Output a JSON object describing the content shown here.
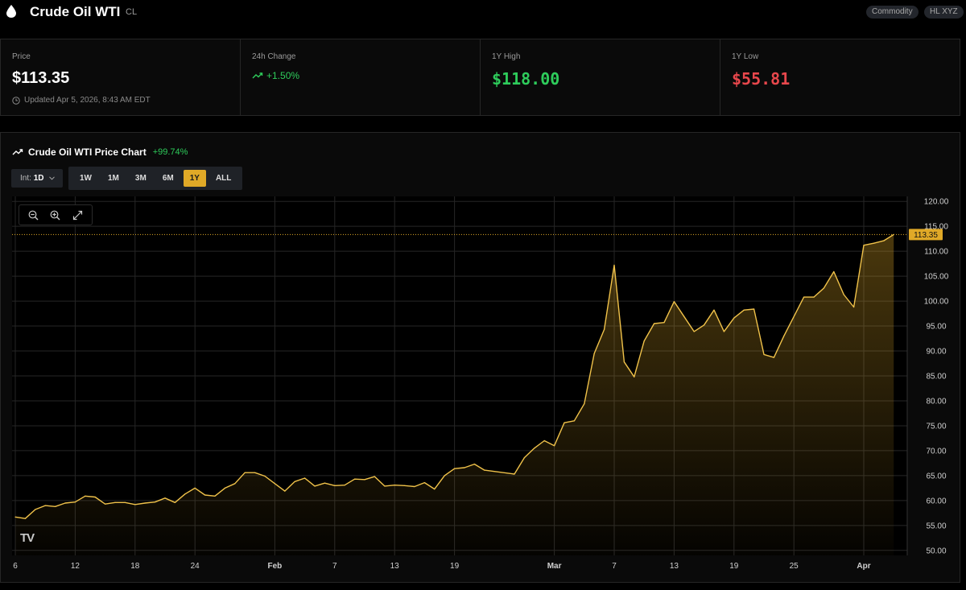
{
  "header": {
    "title": "Crude Oil WTI",
    "ticker": "CL",
    "icon": "droplet-icon",
    "badges": [
      "Commodity",
      "HL XYZ"
    ]
  },
  "stats": {
    "price": {
      "label": "Price",
      "value": "$113.35",
      "updated": "Updated Apr 5, 2026, 8:43 AM EDT"
    },
    "change": {
      "label": "24h Change",
      "value": "+1.50%"
    },
    "high": {
      "label": "1Y High",
      "value": "$118.00"
    },
    "low": {
      "label": "1Y Low",
      "value": "$55.81"
    }
  },
  "chart_panel": {
    "title": "Crude Oil WTI Price Chart",
    "change": "+99.74%",
    "interval_label": "Int:",
    "interval_value": "1D",
    "ranges": [
      "1W",
      "1M",
      "3M",
      "6M",
      "1Y",
      "ALL"
    ],
    "active_range": "1Y",
    "logo": "TV"
  },
  "colors": {
    "accent": "#e0a927",
    "line": "#f0c24a",
    "up": "#2ecc5b",
    "down": "#e8474c"
  },
  "chart_data": {
    "type": "area",
    "last_value": 113.35,
    "last_value_label": "113.35",
    "ylim": [
      49,
      121
    ],
    "y_ticks": [
      50,
      55,
      60,
      65,
      70,
      75,
      80,
      85,
      90,
      95,
      100,
      105,
      110,
      115,
      120
    ],
    "y_tick_labels": [
      "50.00",
      "55.00",
      "60.00",
      "65.00",
      "70.00",
      "75.00",
      "80.00",
      "85.00",
      "90.00",
      "95.00",
      "100.00",
      "105.00",
      "110.00",
      "115.00",
      "120.00"
    ],
    "x_ticks": [
      {
        "label": "6",
        "date": "2026-01-06",
        "bold": false
      },
      {
        "label": "12",
        "date": "2026-01-12",
        "bold": false
      },
      {
        "label": "18",
        "date": "2026-01-18",
        "bold": false
      },
      {
        "label": "24",
        "date": "2026-01-24",
        "bold": false
      },
      {
        "label": "Feb",
        "date": "2026-02-01",
        "bold": true
      },
      {
        "label": "7",
        "date": "2026-02-07",
        "bold": false
      },
      {
        "label": "13",
        "date": "2026-02-13",
        "bold": false
      },
      {
        "label": "19",
        "date": "2026-02-19",
        "bold": false
      },
      {
        "label": "Mar",
        "date": "2026-03-01",
        "bold": true
      },
      {
        "label": "7",
        "date": "2026-03-07",
        "bold": false
      },
      {
        "label": "13",
        "date": "2026-03-13",
        "bold": false
      },
      {
        "label": "19",
        "date": "2026-03-19",
        "bold": false
      },
      {
        "label": "25",
        "date": "2026-03-25",
        "bold": false
      },
      {
        "label": "Apr",
        "date": "2026-04-01",
        "bold": true
      }
    ],
    "series": [
      {
        "x": [
          "2026-01-06",
          "2026-01-07",
          "2026-01-08",
          "2026-01-09",
          "2026-01-10",
          "2026-01-11",
          "2026-01-12",
          "2026-01-13",
          "2026-01-14",
          "2026-01-15",
          "2026-01-16",
          "2026-01-17",
          "2026-01-18",
          "2026-01-19",
          "2026-01-20",
          "2026-01-21",
          "2026-01-22",
          "2026-01-23",
          "2026-01-24",
          "2026-01-25",
          "2026-01-26",
          "2026-01-27",
          "2026-01-28",
          "2026-01-29",
          "2026-01-30",
          "2026-01-31",
          "2026-02-01",
          "2026-02-02",
          "2026-02-03",
          "2026-02-04",
          "2026-02-05",
          "2026-02-06",
          "2026-02-07",
          "2026-02-08",
          "2026-02-09",
          "2026-02-10",
          "2026-02-11",
          "2026-02-12",
          "2026-02-13",
          "2026-02-14",
          "2026-02-15",
          "2026-02-16",
          "2026-02-17",
          "2026-02-18",
          "2026-02-19",
          "2026-02-20",
          "2026-02-21",
          "2026-02-22",
          "2026-02-25",
          "2026-02-26",
          "2026-02-27",
          "2026-02-28",
          "2026-03-01",
          "2026-03-02",
          "2026-03-03",
          "2026-03-04",
          "2026-03-05",
          "2026-03-06",
          "2026-03-07",
          "2026-03-08",
          "2026-03-09",
          "2026-03-10",
          "2026-03-11",
          "2026-03-12",
          "2026-03-13",
          "2026-03-14",
          "2026-03-15",
          "2026-03-16",
          "2026-03-17",
          "2026-03-18",
          "2026-03-19",
          "2026-03-20",
          "2026-03-21",
          "2026-03-22",
          "2026-03-23",
          "2026-03-24",
          "2026-03-26",
          "2026-03-27",
          "2026-03-28",
          "2026-03-29",
          "2026-03-30",
          "2026-03-31",
          "2026-04-01",
          "2026-04-02",
          "2026-04-03",
          "2026-04-04"
        ],
        "values": [
          56.7,
          56.4,
          58.2,
          59.0,
          58.8,
          59.5,
          59.7,
          60.9,
          60.7,
          59.3,
          59.6,
          59.6,
          59.2,
          59.5,
          59.7,
          60.5,
          59.6,
          61.3,
          62.5,
          61.1,
          60.9,
          62.5,
          63.4,
          65.6,
          65.6,
          64.9,
          63.4,
          61.9,
          63.8,
          64.5,
          62.9,
          63.5,
          63.0,
          63.1,
          64.3,
          64.2,
          64.8,
          62.9,
          63.1,
          63.0,
          62.8,
          63.6,
          62.3,
          65.0,
          66.4,
          66.6,
          67.3,
          66.1,
          65.3,
          68.6,
          70.5,
          72.0,
          71.0,
          75.6,
          76.0,
          79.4,
          89.5,
          94.3,
          107.2,
          87.8,
          84.8,
          92.0,
          95.5,
          95.7,
          99.9,
          96.9,
          93.9,
          95.2,
          98.2,
          93.9,
          96.6,
          98.2,
          98.4,
          89.3,
          88.7,
          93.0,
          100.8,
          100.8,
          102.6,
          105.9,
          101.3,
          98.8,
          111.2,
          111.6,
          112.1,
          113.35
        ]
      }
    ]
  }
}
